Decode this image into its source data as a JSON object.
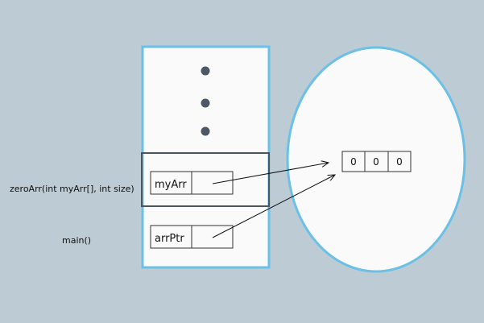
{
  "colors": {
    "background": "#bccbd4",
    "stack_border": "#6cc0e6",
    "heap_border": "#6cc0e6",
    "frame_border": "#4a5560",
    "dot": "#4d5866",
    "fill": "#fafafa"
  },
  "stack": {
    "frames": [
      {
        "function_label": "zeroArr(int myArr[], int size)",
        "var_name": "myArr"
      },
      {
        "function_label": "main()",
        "var_name": "arrPtr"
      }
    ]
  },
  "heap": {
    "array_values": [
      "0",
      "0",
      "0"
    ]
  }
}
